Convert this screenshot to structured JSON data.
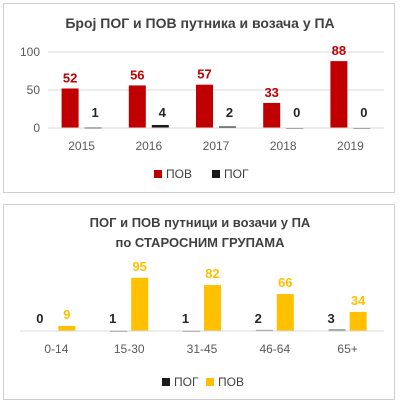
{
  "chart_data": [
    {
      "type": "bar",
      "title": "Број ПОГ и ПОВ путника и возача у ПА",
      "categories": [
        "2015",
        "2016",
        "2017",
        "2018",
        "2019"
      ],
      "series": [
        {
          "name": "ПОВ",
          "values": [
            52,
            56,
            57,
            33,
            88
          ],
          "color": "#c00000",
          "label_color": "#c00000"
        },
        {
          "name": "ПОГ",
          "values": [
            1,
            4,
            2,
            0,
            0
          ],
          "color": "#1a1a1a",
          "label_color": "#262626"
        }
      ],
      "ylim": [
        0,
        100
      ],
      "yticks": [
        0,
        50,
        100
      ],
      "grid": true,
      "legend": "bottom"
    },
    {
      "type": "bar",
      "title": [
        "ПОГ  и ПОВ путници и возачи у ПА",
        "по СТАРОСНИМ ГРУПАМА"
      ],
      "categories": [
        "0-14",
        "15-30",
        "31-45",
        "46-64",
        "65+"
      ],
      "series": [
        {
          "name": "ПОГ",
          "values": [
            0,
            1,
            1,
            2,
            3
          ],
          "color": "#1a1a1a",
          "label_color": "#262626"
        },
        {
          "name": "ПОВ",
          "values": [
            9,
            95,
            82,
            66,
            34
          ],
          "color": "#ffc000",
          "label_color": "#ffc000"
        }
      ],
      "ylim": [
        0,
        100
      ],
      "grid": false,
      "legend": "bottom"
    }
  ]
}
